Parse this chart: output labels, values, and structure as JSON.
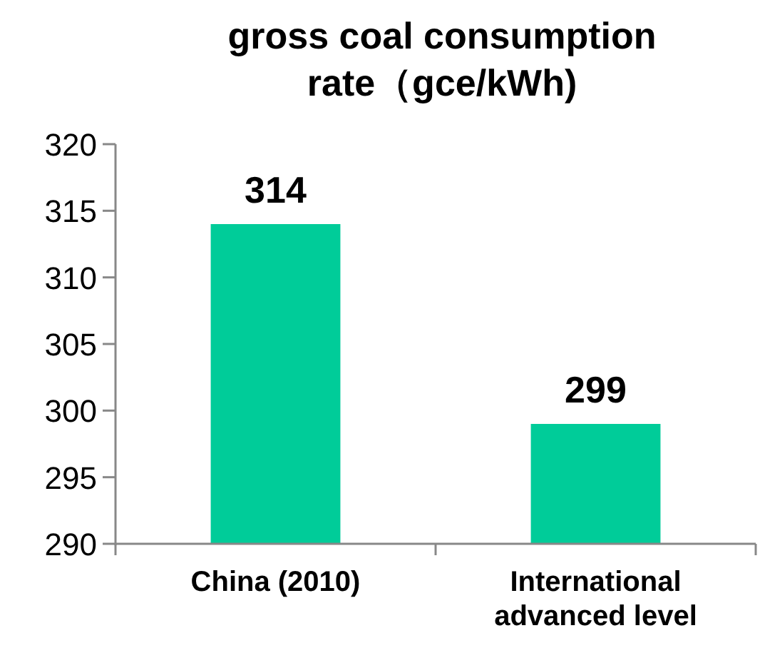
{
  "chart_data": {
    "type": "bar",
    "title": "gross coal consumption rate（gce/kWh)",
    "categories": [
      "China (2010)",
      "International advanced level"
    ],
    "values": [
      314,
      299
    ],
    "color": "#00cc99",
    "ylim": [
      290,
      320
    ],
    "yticks": [
      290,
      295,
      300,
      305,
      310,
      315,
      320
    ],
    "data_labels": true
  }
}
